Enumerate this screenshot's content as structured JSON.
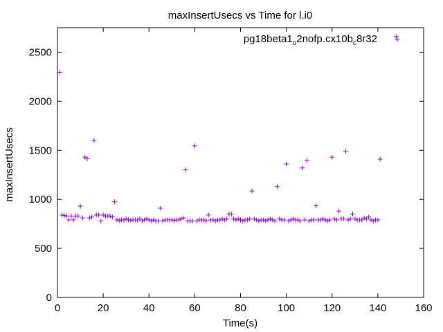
{
  "chart_data": {
    "type": "scatter",
    "title": "maxInsertUsecs vs Time for l.i0",
    "xlabel": "Time(s)",
    "ylabel": "maxInsertUsecs",
    "xlim": [
      0,
      160
    ],
    "ylim": [
      0,
      2750
    ],
    "xticks": [
      0,
      20,
      40,
      60,
      80,
      100,
      120,
      140,
      160
    ],
    "yticks": [
      0,
      500,
      1000,
      1500,
      2000,
      2500
    ],
    "grid": false,
    "legend_position": "top-right",
    "series": [
      {
        "name": "pg18beta1_o2nofp.cx10b_c8r32",
        "name_parts": {
          "a": "pg18beta1",
          "b": "o",
          "c": "2nofp.cx10b",
          "d": "c",
          "e": "8r32"
        },
        "color": "#9400d3",
        "marker": "plus",
        "points": [
          [
            1,
            2295
          ],
          [
            2,
            840
          ],
          [
            3,
            835
          ],
          [
            4,
            830
          ],
          [
            5,
            790
          ],
          [
            6,
            830
          ],
          [
            7,
            790
          ],
          [
            8,
            830
          ],
          [
            9,
            830
          ],
          [
            10,
            930
          ],
          [
            11,
            810
          ],
          [
            12,
            1430
          ],
          [
            13,
            1415
          ],
          [
            14,
            810
          ],
          [
            15,
            820
          ],
          [
            16,
            1600
          ],
          [
            17,
            840
          ],
          [
            18,
            840
          ],
          [
            19,
            780
          ],
          [
            20,
            840
          ],
          [
            21,
            830
          ],
          [
            22,
            830
          ],
          [
            23,
            830
          ],
          [
            24,
            820
          ],
          [
            25,
            975
          ],
          [
            26,
            790
          ],
          [
            27,
            785
          ],
          [
            28,
            790
          ],
          [
            29,
            790
          ],
          [
            30,
            800
          ],
          [
            31,
            790
          ],
          [
            32,
            785
          ],
          [
            33,
            790
          ],
          [
            34,
            790
          ],
          [
            35,
            790
          ],
          [
            36,
            800
          ],
          [
            37,
            780
          ],
          [
            38,
            790
          ],
          [
            39,
            800
          ],
          [
            40,
            790
          ],
          [
            41,
            780
          ],
          [
            42,
            790
          ],
          [
            43,
            780
          ],
          [
            44,
            780
          ],
          [
            45,
            910
          ],
          [
            46,
            780
          ],
          [
            47,
            790
          ],
          [
            48,
            790
          ],
          [
            49,
            790
          ],
          [
            50,
            790
          ],
          [
            51,
            785
          ],
          [
            52,
            790
          ],
          [
            53,
            790
          ],
          [
            54,
            800
          ],
          [
            55,
            810
          ],
          [
            56,
            1300
          ],
          [
            57,
            780
          ],
          [
            58,
            780
          ],
          [
            59,
            780
          ],
          [
            60,
            1545
          ],
          [
            61,
            780
          ],
          [
            62,
            790
          ],
          [
            63,
            790
          ],
          [
            64,
            790
          ],
          [
            65,
            780
          ],
          [
            66,
            840
          ],
          [
            67,
            790
          ],
          [
            68,
            790
          ],
          [
            69,
            780
          ],
          [
            70,
            790
          ],
          [
            71,
            790
          ],
          [
            72,
            800
          ],
          [
            73,
            790
          ],
          [
            74,
            800
          ],
          [
            75,
            850
          ],
          [
            76,
            850
          ],
          [
            77,
            800
          ],
          [
            78,
            790
          ],
          [
            79,
            800
          ],
          [
            80,
            790
          ],
          [
            81,
            780
          ],
          [
            82,
            790
          ],
          [
            83,
            790
          ],
          [
            84,
            800
          ],
          [
            85,
            1085
          ],
          [
            86,
            800
          ],
          [
            87,
            790
          ],
          [
            88,
            780
          ],
          [
            89,
            790
          ],
          [
            90,
            790
          ],
          [
            91,
            780
          ],
          [
            92,
            790
          ],
          [
            93,
            800
          ],
          [
            94,
            790
          ],
          [
            95,
            780
          ],
          [
            96,
            1130
          ],
          [
            97,
            800
          ],
          [
            98,
            790
          ],
          [
            99,
            790
          ],
          [
            100,
            1360
          ],
          [
            101,
            780
          ],
          [
            102,
            790
          ],
          [
            103,
            800
          ],
          [
            104,
            790
          ],
          [
            105,
            790
          ],
          [
            106,
            780
          ],
          [
            107,
            1320
          ],
          [
            108,
            790
          ],
          [
            109,
            1395
          ],
          [
            110,
            780
          ],
          [
            111,
            790
          ],
          [
            112,
            790
          ],
          [
            113,
            935
          ],
          [
            114,
            790
          ],
          [
            115,
            790
          ],
          [
            116,
            800
          ],
          [
            117,
            790
          ],
          [
            118,
            780
          ],
          [
            119,
            790
          ],
          [
            120,
            1430
          ],
          [
            121,
            800
          ],
          [
            122,
            790
          ],
          [
            123,
            880
          ],
          [
            124,
            800
          ],
          [
            125,
            800
          ],
          [
            126,
            1490
          ],
          [
            127,
            790
          ],
          [
            128,
            800
          ],
          [
            129,
            850
          ],
          [
            130,
            800
          ],
          [
            131,
            790
          ],
          [
            132,
            790
          ],
          [
            133,
            790
          ],
          [
            134,
            810
          ],
          [
            135,
            800
          ],
          [
            136,
            820
          ],
          [
            137,
            790
          ],
          [
            138,
            780
          ],
          [
            139,
            790
          ],
          [
            140,
            790
          ],
          [
            141,
            1410
          ],
          [
            148,
            2660
          ]
        ]
      }
    ]
  }
}
